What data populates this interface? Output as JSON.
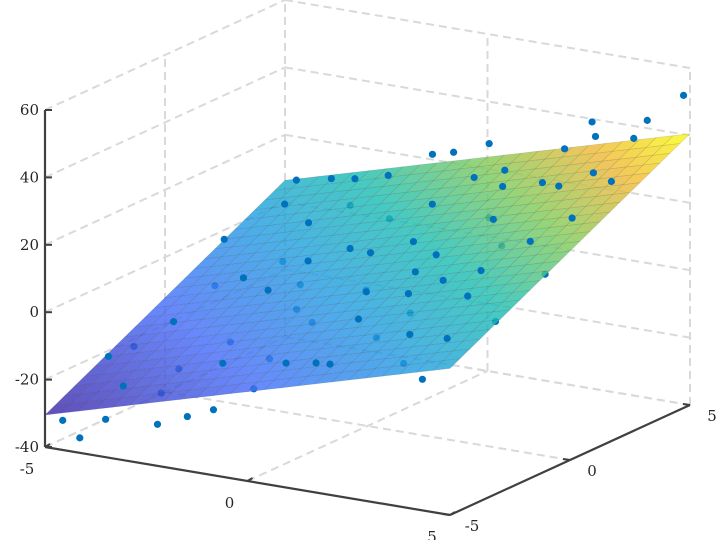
{
  "chart_data": {
    "type": "scatter",
    "subtype": "scatter3 with fitted surface plane",
    "title": "",
    "xlabel": "",
    "ylabel": "",
    "zlabel": "",
    "xlim": [
      -5,
      5
    ],
    "ylim": [
      -5,
      5
    ],
    "zlim": [
      -40,
      60
    ],
    "x_ticks": [
      "-5",
      "0",
      "5"
    ],
    "y_ticks": [
      "-5",
      "0",
      "5"
    ],
    "z_ticks": [
      "60",
      "40",
      "20",
      "0",
      "-20",
      "-40"
    ],
    "grid": true,
    "colormap": "parula",
    "colors": {
      "points": "#0072BD",
      "axis": "#404040",
      "grid": "#d9d9d9",
      "colormap_low": "#3e26a8",
      "colormap_mid": "#22c0b4",
      "colormap_high": "#f9fb15"
    },
    "plane": {
      "intercept": 5,
      "x_coef": 3.4,
      "y_coef": 3.7
    },
    "points": [
      [
        -4.8,
        -4.6,
        -33
      ],
      [
        -4.5,
        -3.2,
        -18
      ],
      [
        -4.2,
        -4.9,
        -36
      ],
      [
        -3.9,
        -1.5,
        -12
      ],
      [
        -3.6,
        -4.1,
        -22
      ],
      [
        -3.3,
        0.4,
        -4
      ],
      [
        -3.0,
        -2.8,
        -20
      ],
      [
        -2.7,
        2.1,
        8
      ],
      [
        -2.4,
        -4.7,
        -29
      ],
      [
        -2.1,
        -0.6,
        -2
      ],
      [
        -1.8,
        3.9,
        18
      ],
      [
        -1.5,
        -3.5,
        -13
      ],
      [
        -1.2,
        1.3,
        6
      ],
      [
        -0.9,
        -4.9,
        -21
      ],
      [
        -0.6,
        4.6,
        25
      ],
      [
        -0.3,
        -1.8,
        -4
      ],
      [
        0.0,
        2.7,
        17
      ],
      [
        0.3,
        -3.9,
        -8
      ],
      [
        0.6,
        0.9,
        13
      ],
      [
        0.9,
        4.2,
        24
      ],
      [
        1.2,
        -2.4,
        2
      ],
      [
        1.5,
        3.1,
        24
      ],
      [
        1.8,
        -4.6,
        -3
      ],
      [
        2.1,
        1.7,
        20
      ],
      [
        2.4,
        -0.9,
        11
      ],
      [
        2.7,
        4.8,
        40
      ],
      [
        3.0,
        -3.3,
        4
      ],
      [
        3.3,
        2.4,
        30
      ],
      [
        3.6,
        -1.9,
        12
      ],
      [
        3.9,
        0.2,
        22
      ],
      [
        4.2,
        -4.8,
        -2
      ],
      [
        4.5,
        3.5,
        43
      ],
      [
        4.8,
        -0.7,
        17
      ],
      [
        4.9,
        4.9,
        52
      ],
      [
        -4.9,
        2.3,
        -2
      ],
      [
        -4.6,
        4.8,
        8
      ],
      [
        -4.0,
        3.3,
        7
      ],
      [
        -3.5,
        4.4,
        12
      ],
      [
        -2.9,
        -3.7,
        -24
      ],
      [
        -2.2,
        -2.0,
        -13
      ],
      [
        -1.6,
        -0.1,
        -1
      ],
      [
        -1.0,
        2.6,
        11
      ],
      [
        -0.4,
        0.8,
        8
      ],
      [
        0.2,
        -0.4,
        2
      ],
      [
        0.8,
        -1.4,
        6
      ],
      [
        1.4,
        0.5,
        12
      ],
      [
        2.0,
        -3.0,
        0
      ],
      [
        2.6,
        2.9,
        28
      ],
      [
        3.2,
        4.1,
        39
      ],
      [
        3.8,
        3.0,
        33
      ],
      [
        4.4,
        1.1,
        27
      ],
      [
        4.7,
        -2.6,
        9
      ],
      [
        -4.3,
        0.9,
        -10
      ],
      [
        -3.1,
        1.7,
        -3
      ],
      [
        -2.5,
        3.5,
        9
      ],
      [
        -1.9,
        -4.3,
        -27
      ],
      [
        -1.3,
        4.9,
        22
      ],
      [
        -0.7,
        -2.9,
        -12
      ],
      [
        0.5,
        3.6,
        23
      ],
      [
        1.1,
        -4.0,
        -6
      ],
      [
        1.7,
        2.2,
        18
      ],
      [
        2.3,
        -2.1,
        5
      ],
      [
        2.9,
        0.7,
        17
      ],
      [
        3.5,
        -4.4,
        0
      ],
      [
        4.1,
        -3.6,
        6
      ],
      [
        4.6,
        2.4,
        34
      ],
      [
        -4.7,
        -1.8,
        -20
      ],
      [
        -3.8,
        -4.5,
        -31
      ],
      [
        -2.0,
        0.9,
        2
      ],
      [
        -0.2,
        -4.4,
        -15
      ],
      [
        1.3,
        -0.2,
        9
      ],
      [
        3.1,
        -0.5,
        14
      ],
      [
        4.3,
        4.4,
        45
      ],
      [
        0.1,
        4.9,
        28
      ],
      [
        -2.8,
        4.2,
        14
      ],
      [
        2.2,
        4.5,
        32
      ],
      [
        -1.1,
        -1.1,
        -4
      ],
      [
        1.9,
        -1.5,
        8
      ]
    ]
  }
}
